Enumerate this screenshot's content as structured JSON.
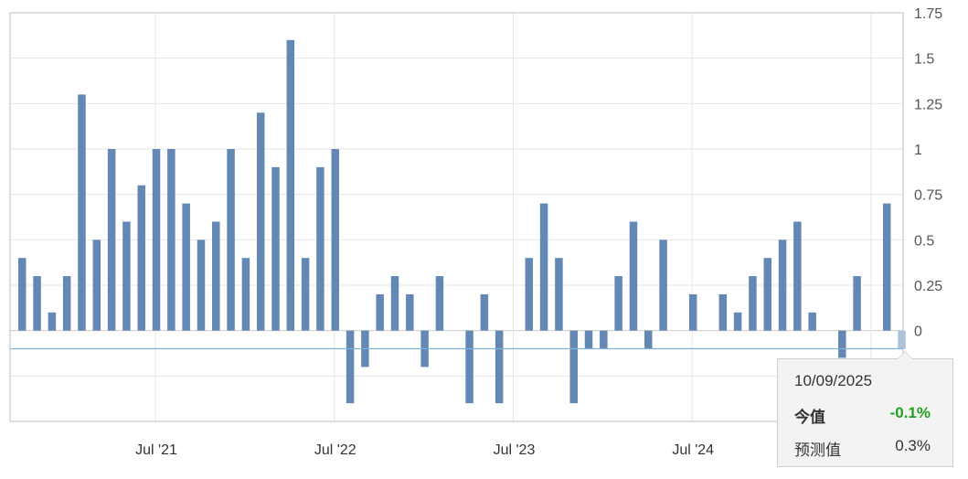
{
  "chart_data": {
    "type": "bar",
    "values": [
      0.4,
      0.3,
      0.1,
      0.3,
      1.3,
      0.5,
      1.0,
      0.6,
      0.8,
      1.0,
      1.0,
      0.7,
      0.5,
      0.6,
      1.0,
      0.4,
      1.2,
      0.9,
      1.6,
      0.4,
      0.9,
      1.0,
      -0.4,
      -0.2,
      0.2,
      0.3,
      0.2,
      -0.2,
      0.3,
      0.0,
      -0.4,
      0.2,
      -0.4,
      0.0,
      0.4,
      0.7,
      0.4,
      -0.4,
      -0.1,
      -0.1,
      0.3,
      0.6,
      -0.1,
      0.5,
      0.0,
      0.2,
      0.0,
      0.2,
      0.1,
      0.3,
      0.4,
      0.5,
      0.6,
      0.1,
      0.0,
      -0.15,
      0.3,
      0.0,
      0.7,
      -0.1
    ],
    "x_tick_labels": [
      "Jul '21",
      "Jul '22",
      "Jul '23",
      "Jul '24"
    ],
    "x_tick_indices": [
      9,
      21,
      33,
      45
    ],
    "y_tick_labels": [
      "1.75",
      "1.5",
      "1.25",
      "1",
      "0.75",
      "0.5",
      "0.25",
      "0"
    ],
    "y_tick_values": [
      1.75,
      1.5,
      1.25,
      1.0,
      0.75,
      0.5,
      0.25,
      0.0
    ],
    "ylim": [
      -0.5,
      1.75
    ],
    "reference_line": -0.1,
    "bar_color": "#6388b4",
    "highlight_color": "#a9c3de",
    "reference_line_color": "#7fb2d6",
    "highlight_index": 59,
    "grid": true,
    "title": "",
    "xlabel": "",
    "ylabel": ""
  },
  "tooltip": {
    "date": "10/09/2025",
    "actual_label": "今值",
    "actual_value": "-0.1%",
    "actual_color": "#22a022",
    "forecast_label": "预测值",
    "forecast_value": "0.3%"
  }
}
